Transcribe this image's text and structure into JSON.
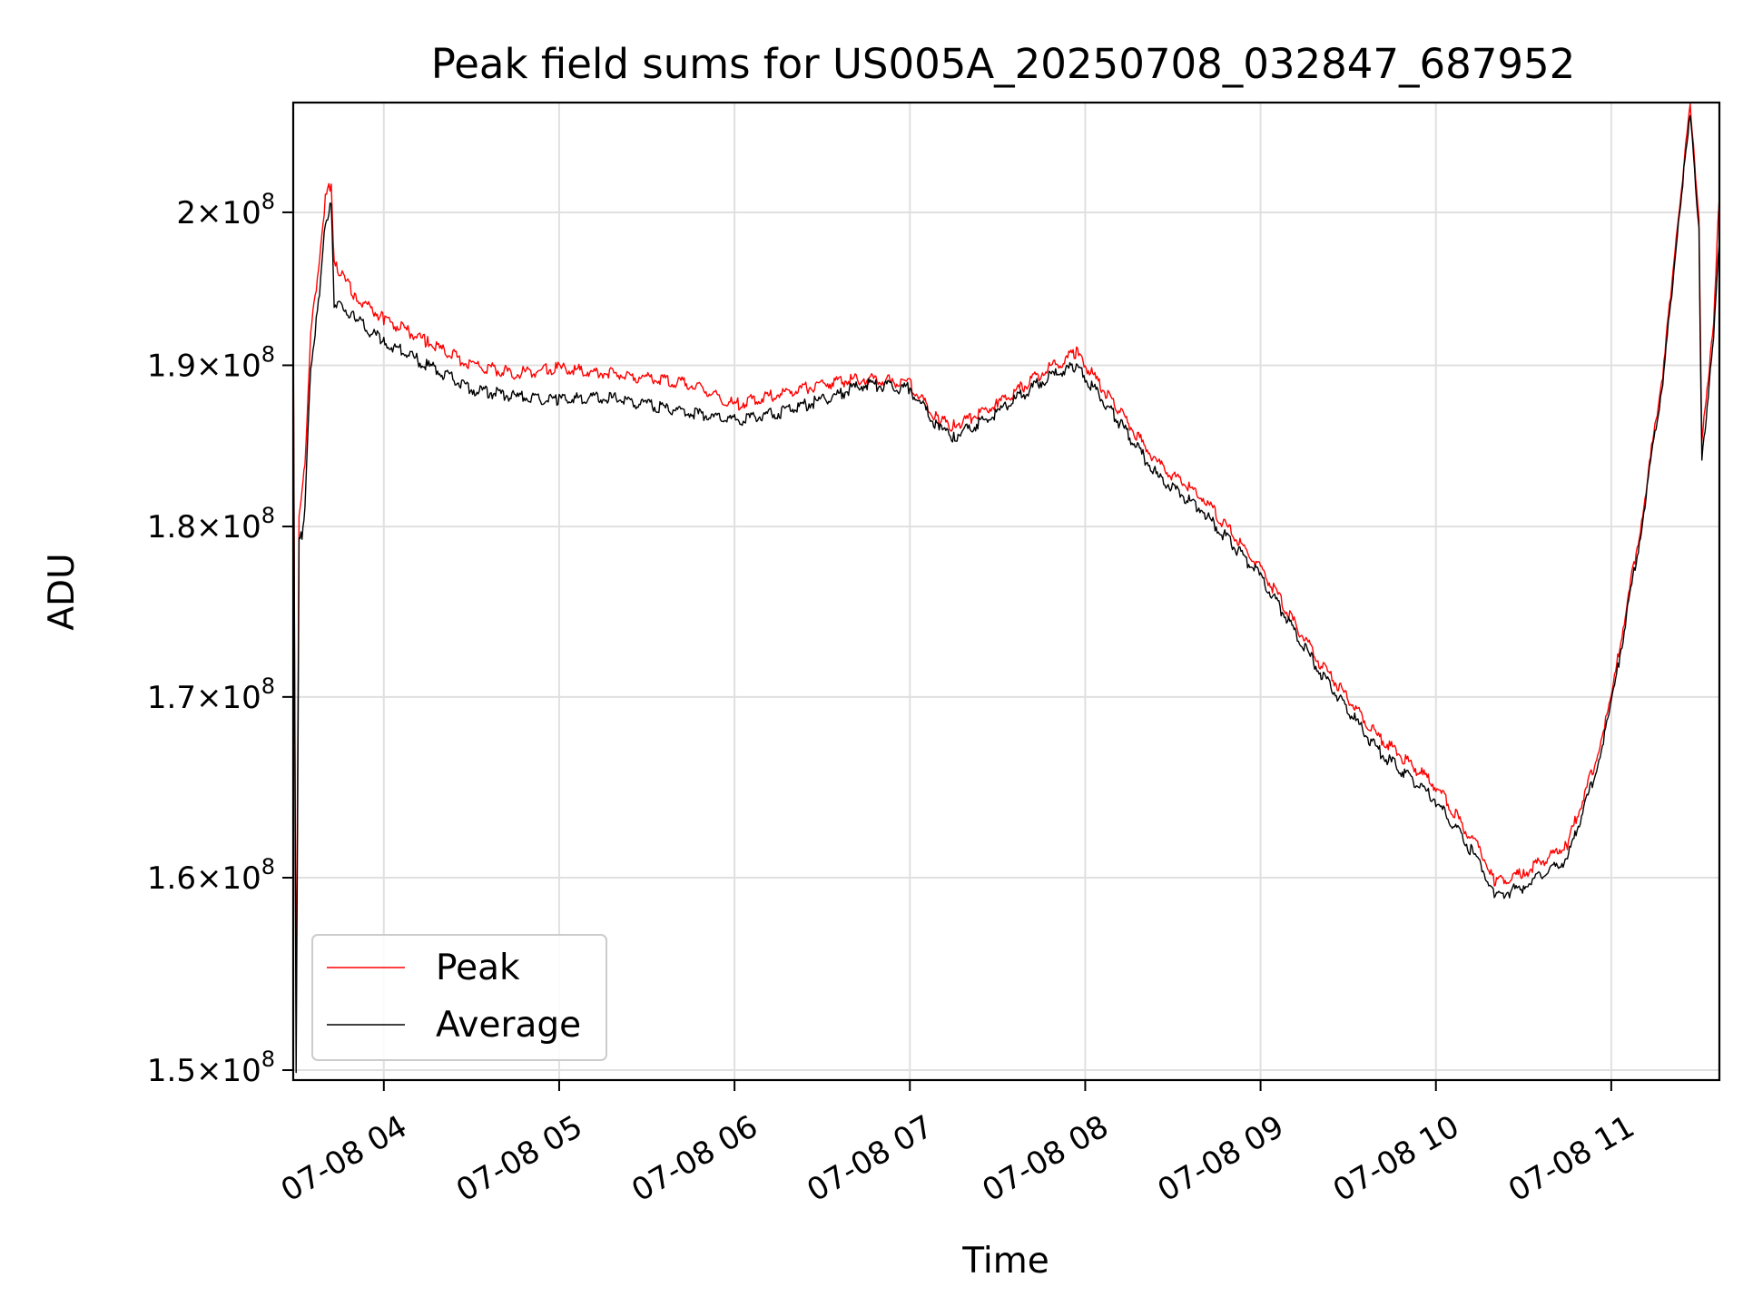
{
  "chart_data": {
    "type": "line",
    "title": "Peak field sums for US005A_20250708_032847_687952",
    "xlabel": "Time",
    "ylabel": "ADU",
    "y_scale": "log",
    "ylim": [
      149500000,
      207500000
    ],
    "xlim": [
      "07-08 03:29",
      "07-08 11:37"
    ],
    "x_ticks": [
      {
        "value": "07-08 04:00",
        "label": "07-08 04"
      },
      {
        "value": "07-08 05:00",
        "label": "07-08 05"
      },
      {
        "value": "07-08 06:00",
        "label": "07-08 06"
      },
      {
        "value": "07-08 07:00",
        "label": "07-08 07"
      },
      {
        "value": "07-08 08:00",
        "label": "07-08 08"
      },
      {
        "value": "07-08 09:00",
        "label": "07-08 09"
      },
      {
        "value": "07-08 10:00",
        "label": "07-08 10"
      },
      {
        "value": "07-08 11:00",
        "label": "07-08 11"
      }
    ],
    "y_ticks": [
      {
        "value": 150000000,
        "mantissa": "1.5",
        "base": "10",
        "exp": "8"
      },
      {
        "value": 160000000,
        "mantissa": "1.6",
        "base": "10",
        "exp": "8"
      },
      {
        "value": 170000000,
        "mantissa": "1.7",
        "base": "10",
        "exp": "8"
      },
      {
        "value": 180000000,
        "mantissa": "1.8",
        "base": "10",
        "exp": "8"
      },
      {
        "value": 190000000,
        "mantissa": "1.9",
        "base": "10",
        "exp": "8"
      },
      {
        "value": 200000000,
        "mantissa": "2",
        "base": "10",
        "exp": "8"
      }
    ],
    "grid": true,
    "legend_position": "lower-left",
    "series": [
      {
        "name": "Peak",
        "color": "#ff0000",
        "x": [
          "07-08 03:29",
          "07-08 03:30",
          "07-08 03:31",
          "07-08 03:32",
          "07-08 03:33",
          "07-08 03:35",
          "07-08 03:38",
          "07-08 03:40",
          "07-08 03:42",
          "07-08 03:43",
          "07-08 03:45",
          "07-08 03:50",
          "07-08 04:00",
          "07-08 04:15",
          "07-08 04:30",
          "07-08 04:45",
          "07-08 05:00",
          "07-08 05:15",
          "07-08 05:30",
          "07-08 05:45",
          "07-08 06:00",
          "07-08 06:15",
          "07-08 06:30",
          "07-08 06:45",
          "07-08 07:00",
          "07-08 07:10",
          "07-08 07:15",
          "07-08 07:30",
          "07-08 07:45",
          "07-08 07:57",
          "07-08 08:10",
          "07-08 08:25",
          "07-08 08:40",
          "07-08 09:00",
          "07-08 09:20",
          "07-08 09:40",
          "07-08 10:00",
          "07-08 10:15",
          "07-08 10:20",
          "07-08 10:30",
          "07-08 10:45",
          "07-08 10:55",
          "07-08 11:00",
          "07-08 11:10",
          "07-08 11:18",
          "07-08 11:23",
          "07-08 11:27",
          "07-08 11:30",
          "07-08 11:31",
          "07-08 11:35",
          "07-08 11:37"
        ],
        "y": [
          194000000,
          152000000,
          181000000,
          182000000,
          184000000,
          192000000,
          197000000,
          201000000,
          202000000,
          196500000,
          196000000,
          194500000,
          193000000,
          191500000,
          190000000,
          189500000,
          189800000,
          189500000,
          189200000,
          188800000,
          187500000,
          188200000,
          188800000,
          189200000,
          188800000,
          186500000,
          186200000,
          187500000,
          189500000,
          190800000,
          187500000,
          183800000,
          181800000,
          177500000,
          172000000,
          167800000,
          165000000,
          161500000,
          159800000,
          160200000,
          161800000,
          166500000,
          170000000,
          180000000,
          190000000,
          200000000,
          207000000,
          200000000,
          185000000,
          193000000,
          201000000
        ]
      },
      {
        "name": "Average",
        "color": "#000000",
        "x": [
          "07-08 03:29",
          "07-08 03:30",
          "07-08 03:31",
          "07-08 03:32",
          "07-08 03:33",
          "07-08 03:35",
          "07-08 03:38",
          "07-08 03:40",
          "07-08 03:42",
          "07-08 03:43",
          "07-08 03:45",
          "07-08 03:50",
          "07-08 04:00",
          "07-08 04:15",
          "07-08 04:30",
          "07-08 04:45",
          "07-08 04:54",
          "07-08 05:00",
          "07-08 05:15",
          "07-08 05:30",
          "07-08 05:45",
          "07-08 06:00",
          "07-08 06:15",
          "07-08 06:30",
          "07-08 06:45",
          "07-08 07:00",
          "07-08 07:10",
          "07-08 07:15",
          "07-08 07:30",
          "07-08 07:45",
          "07-08 07:57",
          "07-08 08:10",
          "07-08 08:25",
          "07-08 08:40",
          "07-08 09:00",
          "07-08 09:20",
          "07-08 09:40",
          "07-08 10:00",
          "07-08 10:15",
          "07-08 10:20",
          "07-08 10:30",
          "07-08 10:45",
          "07-08 10:55",
          "07-08 11:00",
          "07-08 11:10",
          "07-08 11:18",
          "07-08 11:23",
          "07-08 11:27",
          "07-08 11:30",
          "07-08 11:31",
          "07-08 11:35",
          "07-08 11:37"
        ],
        "y": [
          193000000,
          150000000,
          179000000,
          179500000,
          181000000,
          190000000,
          194500000,
          199500000,
          200500000,
          194000000,
          194000000,
          193000000,
          191500000,
          190000000,
          188500000,
          188000000,
          187900000,
          187800000,
          188000000,
          187500000,
          187000000,
          186500000,
          187000000,
          187800000,
          188800000,
          188500000,
          186000000,
          185500000,
          187000000,
          189000000,
          190000000,
          186800000,
          183000000,
          181000000,
          177000000,
          171500000,
          167000000,
          164200000,
          160800000,
          159000000,
          159500000,
          161000000,
          166000000,
          169500000,
          179500000,
          189500000,
          199500000,
          206500000,
          199000000,
          184000000,
          192000000,
          198000000
        ]
      }
    ]
  }
}
